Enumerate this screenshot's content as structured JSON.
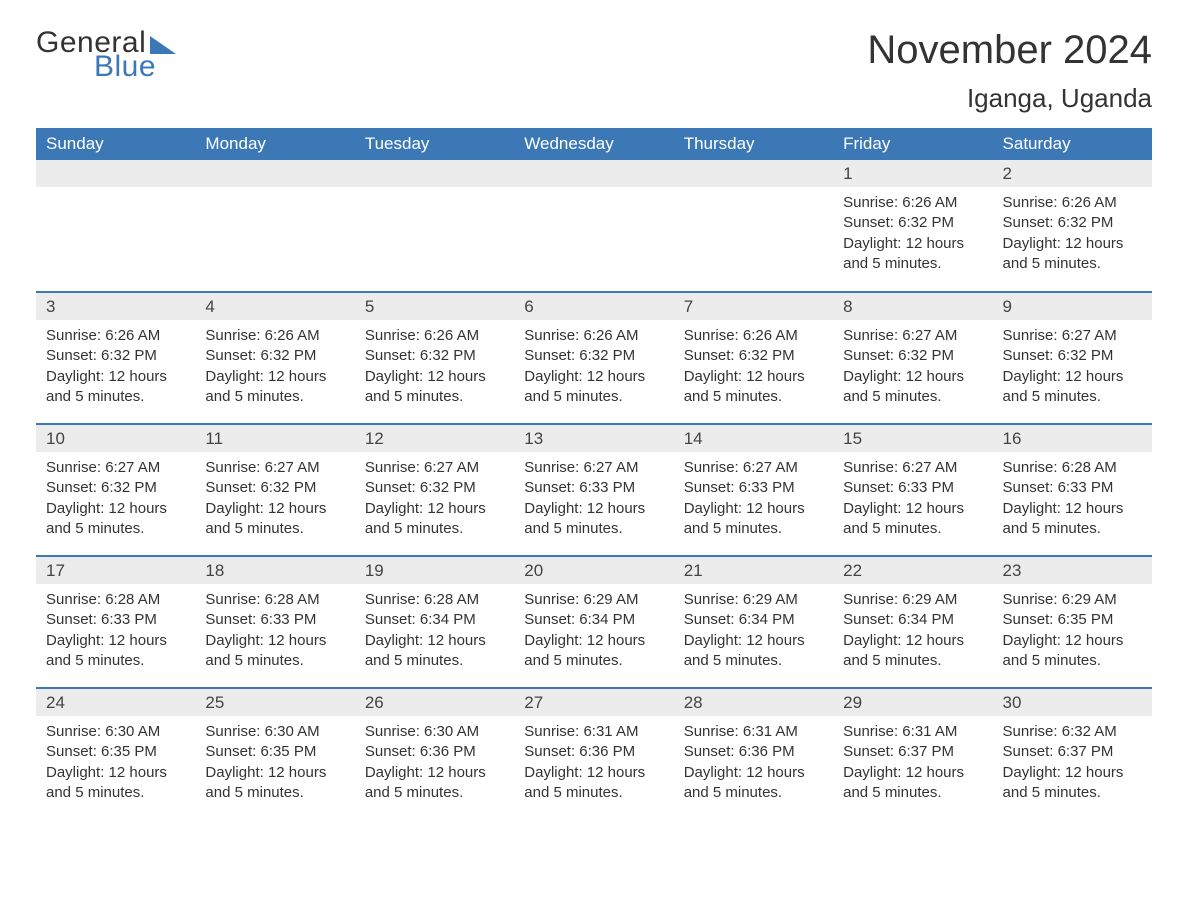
{
  "brand": {
    "word1": "General",
    "word2": "Blue"
  },
  "title": "November 2024",
  "location": "Iganga, Uganda",
  "colors": {
    "accent": "#3b78b5",
    "header_text": "#ffffff",
    "daynum_bg": "#ececec",
    "text": "#333333",
    "background": "#ffffff"
  },
  "layout": {
    "columns": 7,
    "rows": 5,
    "week_start": "Sunday"
  },
  "day_headers": [
    "Sunday",
    "Monday",
    "Tuesday",
    "Wednesday",
    "Thursday",
    "Friday",
    "Saturday"
  ],
  "labels": {
    "sunrise_prefix": "Sunrise: ",
    "sunset_prefix": "Sunset: ",
    "daylight_prefix": "Daylight: "
  },
  "weeks": [
    [
      {
        "blank": true
      },
      {
        "blank": true
      },
      {
        "blank": true
      },
      {
        "blank": true
      },
      {
        "blank": true
      },
      {
        "day": "1",
        "sunrise": "6:26 AM",
        "sunset": "6:32 PM",
        "daylight": "12 hours and 5 minutes."
      },
      {
        "day": "2",
        "sunrise": "6:26 AM",
        "sunset": "6:32 PM",
        "daylight": "12 hours and 5 minutes."
      }
    ],
    [
      {
        "day": "3",
        "sunrise": "6:26 AM",
        "sunset": "6:32 PM",
        "daylight": "12 hours and 5 minutes."
      },
      {
        "day": "4",
        "sunrise": "6:26 AM",
        "sunset": "6:32 PM",
        "daylight": "12 hours and 5 minutes."
      },
      {
        "day": "5",
        "sunrise": "6:26 AM",
        "sunset": "6:32 PM",
        "daylight": "12 hours and 5 minutes."
      },
      {
        "day": "6",
        "sunrise": "6:26 AM",
        "sunset": "6:32 PM",
        "daylight": "12 hours and 5 minutes."
      },
      {
        "day": "7",
        "sunrise": "6:26 AM",
        "sunset": "6:32 PM",
        "daylight": "12 hours and 5 minutes."
      },
      {
        "day": "8",
        "sunrise": "6:27 AM",
        "sunset": "6:32 PM",
        "daylight": "12 hours and 5 minutes."
      },
      {
        "day": "9",
        "sunrise": "6:27 AM",
        "sunset": "6:32 PM",
        "daylight": "12 hours and 5 minutes."
      }
    ],
    [
      {
        "day": "10",
        "sunrise": "6:27 AM",
        "sunset": "6:32 PM",
        "daylight": "12 hours and 5 minutes."
      },
      {
        "day": "11",
        "sunrise": "6:27 AM",
        "sunset": "6:32 PM",
        "daylight": "12 hours and 5 minutes."
      },
      {
        "day": "12",
        "sunrise": "6:27 AM",
        "sunset": "6:32 PM",
        "daylight": "12 hours and 5 minutes."
      },
      {
        "day": "13",
        "sunrise": "6:27 AM",
        "sunset": "6:33 PM",
        "daylight": "12 hours and 5 minutes."
      },
      {
        "day": "14",
        "sunrise": "6:27 AM",
        "sunset": "6:33 PM",
        "daylight": "12 hours and 5 minutes."
      },
      {
        "day": "15",
        "sunrise": "6:27 AM",
        "sunset": "6:33 PM",
        "daylight": "12 hours and 5 minutes."
      },
      {
        "day": "16",
        "sunrise": "6:28 AM",
        "sunset": "6:33 PM",
        "daylight": "12 hours and 5 minutes."
      }
    ],
    [
      {
        "day": "17",
        "sunrise": "6:28 AM",
        "sunset": "6:33 PM",
        "daylight": "12 hours and 5 minutes."
      },
      {
        "day": "18",
        "sunrise": "6:28 AM",
        "sunset": "6:33 PM",
        "daylight": "12 hours and 5 minutes."
      },
      {
        "day": "19",
        "sunrise": "6:28 AM",
        "sunset": "6:34 PM",
        "daylight": "12 hours and 5 minutes."
      },
      {
        "day": "20",
        "sunrise": "6:29 AM",
        "sunset": "6:34 PM",
        "daylight": "12 hours and 5 minutes."
      },
      {
        "day": "21",
        "sunrise": "6:29 AM",
        "sunset": "6:34 PM",
        "daylight": "12 hours and 5 minutes."
      },
      {
        "day": "22",
        "sunrise": "6:29 AM",
        "sunset": "6:34 PM",
        "daylight": "12 hours and 5 minutes."
      },
      {
        "day": "23",
        "sunrise": "6:29 AM",
        "sunset": "6:35 PM",
        "daylight": "12 hours and 5 minutes."
      }
    ],
    [
      {
        "day": "24",
        "sunrise": "6:30 AM",
        "sunset": "6:35 PM",
        "daylight": "12 hours and 5 minutes."
      },
      {
        "day": "25",
        "sunrise": "6:30 AM",
        "sunset": "6:35 PM",
        "daylight": "12 hours and 5 minutes."
      },
      {
        "day": "26",
        "sunrise": "6:30 AM",
        "sunset": "6:36 PM",
        "daylight": "12 hours and 5 minutes."
      },
      {
        "day": "27",
        "sunrise": "6:31 AM",
        "sunset": "6:36 PM",
        "daylight": "12 hours and 5 minutes."
      },
      {
        "day": "28",
        "sunrise": "6:31 AM",
        "sunset": "6:36 PM",
        "daylight": "12 hours and 5 minutes."
      },
      {
        "day": "29",
        "sunrise": "6:31 AM",
        "sunset": "6:37 PM",
        "daylight": "12 hours and 5 minutes."
      },
      {
        "day": "30",
        "sunrise": "6:32 AM",
        "sunset": "6:37 PM",
        "daylight": "12 hours and 5 minutes."
      }
    ]
  ]
}
